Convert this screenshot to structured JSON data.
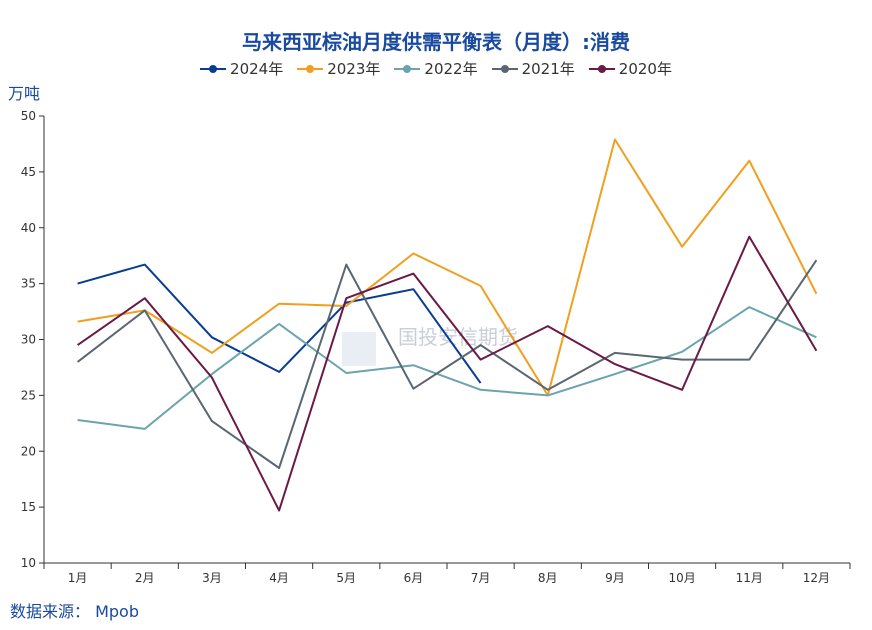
{
  "title": "马来西亚棕油月度供需平衡表（月度）:消费",
  "unit_label": "万吨",
  "source_label": "数据来源：  Mpob",
  "watermark_text": "国投安信期货",
  "chart_data": {
    "type": "line",
    "title": "马来西亚棕油月度供需平衡表（月度）:消费",
    "ylabel": "万吨",
    "xlabel": "",
    "ylim": [
      10,
      50
    ],
    "yticks": [
      10,
      15,
      20,
      25,
      30,
      35,
      40,
      45,
      50
    ],
    "categories": [
      "1月",
      "2月",
      "3月",
      "4月",
      "5月",
      "6月",
      "7月",
      "8月",
      "9月",
      "10月",
      "11月",
      "12月"
    ],
    "grid": false,
    "legend_position": "top",
    "series": [
      {
        "name": "2024年",
        "color": "#0a3d91",
        "values": [
          35.0,
          36.7,
          30.2,
          27.1,
          33.3,
          34.5,
          26.1,
          null,
          null,
          null,
          null,
          null
        ]
      },
      {
        "name": "2023年",
        "color": "#f0a01e",
        "values": [
          31.6,
          32.6,
          28.8,
          33.2,
          33.0,
          37.7,
          34.8,
          25.0,
          47.9,
          38.3,
          46.0,
          34.1
        ]
      },
      {
        "name": "2022年",
        "color": "#6aa4ac",
        "values": [
          22.8,
          22.0,
          26.9,
          31.4,
          27.0,
          27.7,
          25.5,
          25.0,
          26.9,
          28.9,
          32.9,
          30.2
        ]
      },
      {
        "name": "2021年",
        "color": "#5a6670",
        "values": [
          28.0,
          32.6,
          22.7,
          18.5,
          36.7,
          25.6,
          29.5,
          25.5,
          28.8,
          28.2,
          28.2,
          37.1
        ]
      },
      {
        "name": "2020年",
        "color": "#6b1a45",
        "values": [
          29.5,
          33.7,
          26.6,
          14.7,
          33.7,
          35.9,
          28.2,
          31.2,
          27.8,
          25.5,
          39.2,
          29.0
        ]
      }
    ]
  }
}
